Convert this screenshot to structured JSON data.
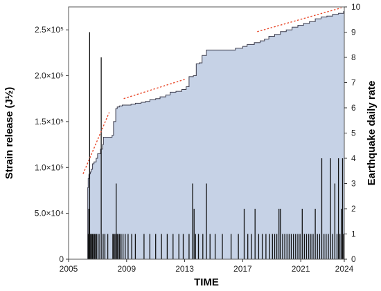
{
  "chart_data": {
    "type": "area+bar",
    "xlabel": "TIME",
    "ylabel_left": "Strain release (J½)",
    "ylabel_right": "Earthquake daily rate",
    "xlim": [
      2005,
      2024
    ],
    "ylim_left": [
      0,
      275000
    ],
    "ylim_right": [
      0,
      10
    ],
    "x_ticks": [
      "2005",
      "2009",
      "2013",
      "2017",
      "2021",
      "2024"
    ],
    "x_tick_values": [
      2005,
      2009,
      2013,
      2017,
      2021,
      2024
    ],
    "y_left_ticks": [
      "0",
      "5.0×10⁴",
      "1.0×10⁵",
      "1.5×10⁵",
      "2.0×10⁵",
      "2.5×10⁵"
    ],
    "y_left_tick_values": [
      0,
      50000,
      100000,
      150000,
      200000,
      250000
    ],
    "y_right_ticks": [
      "0",
      "1",
      "2",
      "3",
      "4",
      "5",
      "6",
      "7",
      "8",
      "9",
      "10"
    ],
    "y_right_tick_values": [
      0,
      1,
      2,
      3,
      4,
      5,
      6,
      7,
      8,
      9,
      10
    ],
    "grid": false,
    "fill_color": "#c6d2e6",
    "line_color": "#3a3a4a",
    "bar_color": "#111111",
    "trend_color": "#e8482a",
    "cumulative_strain": {
      "x": [
        2006.3,
        2006.32,
        2006.35,
        2006.4,
        2006.42,
        2006.5,
        2006.55,
        2006.65,
        2006.75,
        2006.9,
        2007.0,
        2007.2,
        2007.35,
        2007.4,
        2007.5,
        2007.7,
        2008.0,
        2008.1,
        2008.25,
        2008.35,
        2008.5,
        2008.7,
        2009.0,
        2009.3,
        2009.6,
        2010.0,
        2010.3,
        2010.6,
        2011.0,
        2011.3,
        2011.7,
        2012.0,
        2012.4,
        2012.8,
        2013.1,
        2013.3,
        2013.6,
        2013.8,
        2014.0,
        2014.2,
        2014.5,
        2014.65,
        2015.0,
        2015.5,
        2016.0,
        2016.5,
        2017.0,
        2017.3,
        2017.8,
        2018.2,
        2018.5,
        2018.8,
        2019.2,
        2019.6,
        2020.0,
        2020.4,
        2020.8,
        2021.2,
        2021.6,
        2022.0,
        2022.4,
        2022.8,
        2023.2,
        2023.6,
        2023.8,
        2023.95,
        2024.0
      ],
      "y": [
        0,
        78000,
        88000,
        92000,
        93000,
        95000,
        98000,
        104000,
        106000,
        110000,
        115000,
        120000,
        125000,
        133000,
        133000,
        133000,
        135000,
        150000,
        164000,
        166000,
        167000,
        168000,
        168000,
        169000,
        170000,
        171000,
        172000,
        174000,
        175000,
        177000,
        179000,
        182000,
        183000,
        185000,
        188000,
        199000,
        200000,
        213000,
        214000,
        222000,
        228000,
        228000,
        228000,
        228000,
        228000,
        230000,
        232000,
        234000,
        236000,
        238000,
        240000,
        243000,
        245000,
        248000,
        250000,
        253000,
        255000,
        257000,
        259000,
        262000,
        264000,
        265000,
        267000,
        268000,
        268000,
        270000,
        274000
      ]
    },
    "daily_rate_bars": {
      "x": [
        2006.35,
        2006.4,
        2006.45,
        2006.52,
        2006.58,
        2006.65,
        2006.72,
        2006.8,
        2006.88,
        2006.95,
        2007.1,
        2007.25,
        2007.38,
        2007.5,
        2007.7,
        2008.05,
        2008.12,
        2008.2,
        2008.28,
        2008.35,
        2008.42,
        2008.52,
        2008.62,
        2008.75,
        2008.9,
        2009.1,
        2009.35,
        2009.6,
        2010.2,
        2010.6,
        2011.0,
        2011.4,
        2011.8,
        2012.2,
        2012.6,
        2012.9,
        2013.3,
        2013.55,
        2013.65,
        2013.75,
        2013.95,
        2014.25,
        2014.5,
        2014.75,
        2015.1,
        2015.6,
        2016.2,
        2016.7,
        2017.1,
        2017.35,
        2017.6,
        2017.85,
        2018.1,
        2018.35,
        2018.6,
        2018.85,
        2019.05,
        2019.2,
        2019.35,
        2019.5,
        2019.6,
        2019.75,
        2019.9,
        2020.05,
        2020.2,
        2020.35,
        2020.5,
        2020.65,
        2020.8,
        2020.95,
        2021.1,
        2021.25,
        2021.4,
        2021.55,
        2021.7,
        2021.85,
        2022.0,
        2022.15,
        2022.3,
        2022.45,
        2022.6,
        2022.75,
        2022.9,
        2023.05,
        2023.2,
        2023.35,
        2023.5,
        2023.6,
        2023.7,
        2023.8,
        2023.88,
        2023.95
      ],
      "y": [
        1,
        2,
        9,
        1,
        1,
        1,
        1,
        1,
        1,
        1,
        1,
        8,
        1,
        1,
        1,
        1,
        1,
        1,
        3,
        1,
        1,
        1,
        1,
        1,
        1,
        1,
        1,
        1,
        1,
        1,
        1,
        1,
        1,
        1,
        1,
        1,
        1,
        3,
        2,
        1,
        1,
        1,
        3,
        1,
        1,
        1,
        1,
        1,
        2,
        1,
        1,
        2,
        1,
        1,
        1,
        1,
        1,
        1,
        1,
        2,
        2,
        1,
        1,
        1,
        1,
        1,
        1,
        1,
        1,
        1,
        2,
        1,
        1,
        1,
        1,
        1,
        2,
        1,
        1,
        4,
        1,
        1,
        1,
        4,
        1,
        3,
        1,
        4,
        1,
        2,
        4,
        1
      ]
    },
    "trend_lines": [
      {
        "x": [
          2006.0,
          2007.8
        ],
        "y": [
          93000,
          160000
        ]
      },
      {
        "x": [
          2008.8,
          2013.0
        ],
        "y": [
          175000,
          196000
        ]
      },
      {
        "x": [
          2018.0,
          2023.8
        ],
        "y": [
          248000,
          274000
        ]
      }
    ]
  }
}
